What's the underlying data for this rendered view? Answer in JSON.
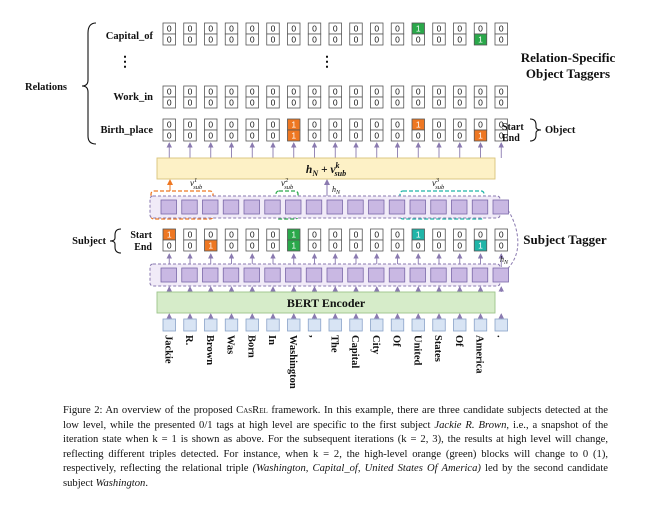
{
  "figure": {
    "tokens": [
      "Jackie",
      "R.",
      "Brown",
      "Was",
      "Born",
      "In",
      "Washington",
      ",",
      "The",
      "Capital",
      "City",
      "Of",
      "United",
      "States",
      "Of",
      "America",
      "."
    ],
    "relations_label": "Relations",
    "relation_names": [
      "Capital_of",
      "Work_in",
      "Birth_place"
    ],
    "start_label": "Start",
    "end_label": "End",
    "object_label": "Object",
    "subject_label": "Subject",
    "object_tagger_title": "Relation-Specific\nObject Taggers",
    "subject_tagger_title": "Subject Tagger",
    "bert_label": "BERT Encoder",
    "hn_vsub_label": "hN + vsub^k",
    "hn_label": "hN",
    "vsub_labels": [
      "vsub^1",
      "vsub^2",
      "vsub^3"
    ],
    "dots": "⋮",
    "tags": {
      "capital_of": {
        "start": [
          0,
          0,
          0,
          0,
          0,
          0,
          0,
          0,
          0,
          0,
          0,
          0,
          0,
          0,
          0,
          0,
          0
        ],
        "end": [
          0,
          0,
          0,
          0,
          0,
          0,
          0,
          0,
          0,
          0,
          0,
          0,
          0,
          0,
          0,
          0,
          0
        ],
        "start_ones": [
          12
        ],
        "end_ones": [
          15
        ]
      },
      "work_in": {
        "start": [
          0,
          0,
          0,
          0,
          0,
          0,
          0,
          0,
          0,
          0,
          0,
          0,
          0,
          0,
          0,
          0,
          0
        ],
        "end": [
          0,
          0,
          0,
          0,
          0,
          0,
          0,
          0,
          0,
          0,
          0,
          0,
          0,
          0,
          0,
          0,
          0
        ],
        "start_ones": [],
        "end_ones": []
      },
      "birth_place": {
        "start": [
          0,
          0,
          0,
          0,
          0,
          0,
          0,
          0,
          0,
          0,
          0,
          0,
          0,
          0,
          0,
          0,
          0
        ],
        "end": [
          0,
          0,
          0,
          0,
          0,
          0,
          0,
          0,
          0,
          0,
          0,
          0,
          0,
          0,
          0,
          0,
          0
        ],
        "start_ones": [
          6,
          12
        ],
        "end_ones": [
          6,
          15
        ]
      },
      "subject": {
        "start": [
          0,
          0,
          0,
          0,
          0,
          0,
          0,
          0,
          0,
          0,
          0,
          0,
          0,
          0,
          0,
          0,
          0
        ],
        "end": [
          0,
          0,
          0,
          0,
          0,
          0,
          0,
          0,
          0,
          0,
          0,
          0,
          0,
          0,
          0,
          0,
          0
        ],
        "start_ones": [
          0,
          6,
          12
        ],
        "end_ones": [
          2,
          6,
          15
        ]
      }
    },
    "colors": {
      "orange": "#ee7722",
      "green": "#2aa84a",
      "teal": "#1fb5a8",
      "purple": "#c9b8e3",
      "yellow": "#fdf1c6",
      "bert": "#d6ecc9"
    }
  },
  "caption": {
    "p1": "Figure 2: An overview of the proposed ",
    "casrel": "CasRel",
    "p2": " framework. In this example, there are three candidate subjects detected at the low level, while the presented 0/1 tags at high level are specific to the first subject ",
    "subj": "Jackie R. Brown",
    "p3": ", i.e., a snapshot of the iteration state when k = 1 is shown as above. For the subsequent iterations (k = 2, 3), the results at high level will change, reflecting different triples detected. For instance, when k = 2, the high-level orange (green) blocks will change to 0 (1), respectively, reflecting the relational triple ",
    "triple": "(Washington, Capital_of, United States Of America)",
    "p4": " led by the second candidate subject ",
    "subj2": "Washington",
    "p5": "."
  }
}
